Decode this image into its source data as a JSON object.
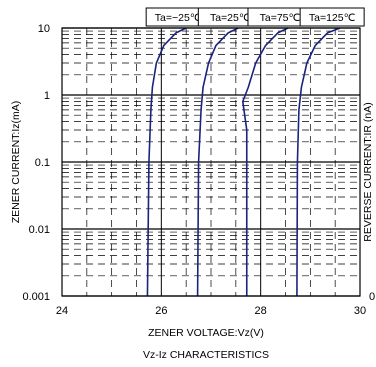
{
  "chart_data": {
    "type": "line",
    "title": "",
    "xlabel": "ZENER VOLTAGE:Vz(V)",
    "ylabel": "ZENER CURRENT:Iz(mA)",
    "ylabel_right": "REVERSE CURRENT:IR (nA)",
    "caption": "Vz-Iz CHARACTERISTICS",
    "xlim": [
      24,
      30
    ],
    "ylim": [
      0.001,
      10
    ],
    "y_scale": "log",
    "grid": true,
    "x_ticks": [
      {
        "value": 24,
        "label": "24"
      },
      {
        "value": 26,
        "label": "26"
      },
      {
        "value": 28,
        "label": "28"
      },
      {
        "value": 30,
        "label": "30"
      }
    ],
    "y_ticks": [
      {
        "value": 10,
        "label": "10"
      },
      {
        "value": 1,
        "label": "1"
      },
      {
        "value": 0.1,
        "label": "0.1"
      },
      {
        "value": 0.01,
        "label": "0.01"
      },
      {
        "value": 0.001,
        "label": "0.001"
      }
    ],
    "right_partial_label": "0",
    "series": [
      {
        "name": "Ta=−25℃",
        "color": "#1a237e",
        "x": [
          25.72,
          25.75,
          25.79,
          25.82,
          25.9,
          26.05,
          26.3,
          26.5
        ],
        "y": [
          0.001,
          0.1,
          0.6,
          1.3,
          3,
          5.5,
          8.5,
          10
        ]
      },
      {
        "name": "Ta=25℃",
        "color": "#1a237e",
        "x": [
          26.73,
          26.75,
          26.8,
          26.84,
          26.95,
          27.1,
          27.35,
          27.55
        ],
        "y": [
          0.001,
          0.1,
          0.6,
          1.3,
          3,
          5.5,
          8.5,
          10
        ]
      },
      {
        "name": "Ta=75℃",
        "color": "#1a237e",
        "x": [
          27.72,
          27.72,
          27.64,
          27.75,
          27.9,
          28.1,
          28.35,
          28.55
        ],
        "y": [
          0.001,
          0.3,
          0.8,
          1.3,
          3,
          5.5,
          8.5,
          10
        ]
      },
      {
        "name": "Ta=125℃",
        "color": "#1a237e",
        "x": [
          28.73,
          28.74,
          28.77,
          28.82,
          28.93,
          29.1,
          29.35,
          29.6
        ],
        "y": [
          0.001,
          0.1,
          0.6,
          1.3,
          3,
          5.5,
          8.5,
          10
        ]
      }
    ]
  }
}
